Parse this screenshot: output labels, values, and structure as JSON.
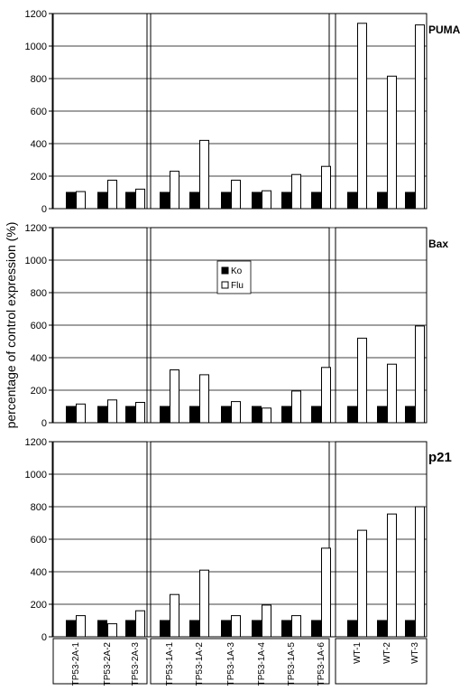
{
  "chart_data": {
    "type": "bar",
    "ylabel": "percentage of control expression (%)",
    "ylim": [
      0,
      1200
    ],
    "yticks": [
      0,
      200,
      400,
      600,
      800,
      1000,
      1200
    ],
    "grid": true,
    "categories": [
      "TP53-2A-1",
      "TP53-2A-2",
      "TP53-2A-3",
      "TP53-1A-1",
      "TP53-1A-2",
      "TP53-1A-3",
      "TP53-1A-4",
      "TP53-1A-5",
      "TP53-1A-6",
      "WT-1",
      "WT-2",
      "WT-3"
    ],
    "groups": [
      [
        0,
        2
      ],
      [
        3,
        8
      ],
      [
        9,
        11
      ]
    ],
    "legend": {
      "entries": [
        "Ko",
        "Flu"
      ],
      "placement": "inside-middle",
      "panel": 1
    },
    "panels": [
      {
        "label": "PUMA",
        "series": [
          {
            "name": "Ko",
            "color": "#000000",
            "values": [
              100,
              100,
              100,
              100,
              100,
              100,
              100,
              100,
              100,
              100,
              100,
              100
            ]
          },
          {
            "name": "Flu",
            "color": "#ffffff",
            "values": [
              105,
              175,
              120,
              230,
              420,
              175,
              110,
              210,
              260,
              1140,
              815,
              1130
            ]
          }
        ]
      },
      {
        "label": "Bax",
        "series": [
          {
            "name": "Ko",
            "color": "#000000",
            "values": [
              100,
              100,
              100,
              100,
              100,
              100,
              100,
              100,
              100,
              100,
              100,
              100
            ]
          },
          {
            "name": "Flu",
            "color": "#ffffff",
            "values": [
              115,
              140,
              125,
              325,
              295,
              130,
              90,
              195,
              340,
              520,
              360,
              595
            ]
          }
        ]
      },
      {
        "label": "p21",
        "series": [
          {
            "name": "Ko",
            "color": "#000000",
            "values": [
              100,
              100,
              100,
              100,
              100,
              100,
              100,
              100,
              100,
              100,
              100,
              100
            ]
          },
          {
            "name": "Flu",
            "color": "#ffffff",
            "values": [
              130,
              80,
              160,
              260,
              410,
              130,
              195,
              130,
              545,
              655,
              755,
              800
            ]
          }
        ]
      }
    ]
  }
}
